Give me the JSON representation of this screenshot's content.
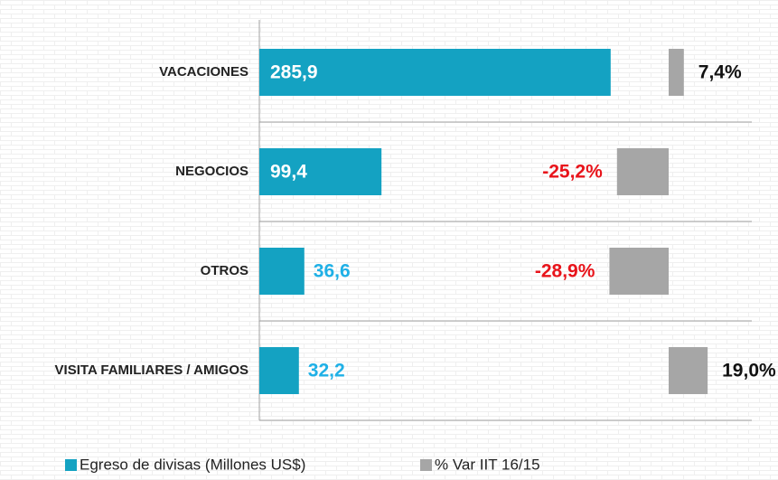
{
  "chart_data": {
    "type": "bar",
    "orientation": "horizontal",
    "categories": [
      "VACACIONES",
      "NEGOCIOS",
      "OTROS",
      "VISITA FAMILIARES / AMIGOS"
    ],
    "series": [
      {
        "name": "Egreso de divisas (Millones US$)",
        "color": "#14a2c2",
        "values": [
          285.9,
          99.4,
          36.6,
          32.2
        ],
        "value_labels": [
          "285,9",
          "99,4",
          "36,6",
          "32,2"
        ]
      },
      {
        "name": "% Var IIT 16/15",
        "color": "#a6a6a6",
        "values": [
          7.4,
          -25.2,
          -28.9,
          19.0
        ],
        "value_labels": [
          "7,4%",
          "-25,2%",
          "-28,9%",
          "19,0%"
        ]
      }
    ]
  }
}
